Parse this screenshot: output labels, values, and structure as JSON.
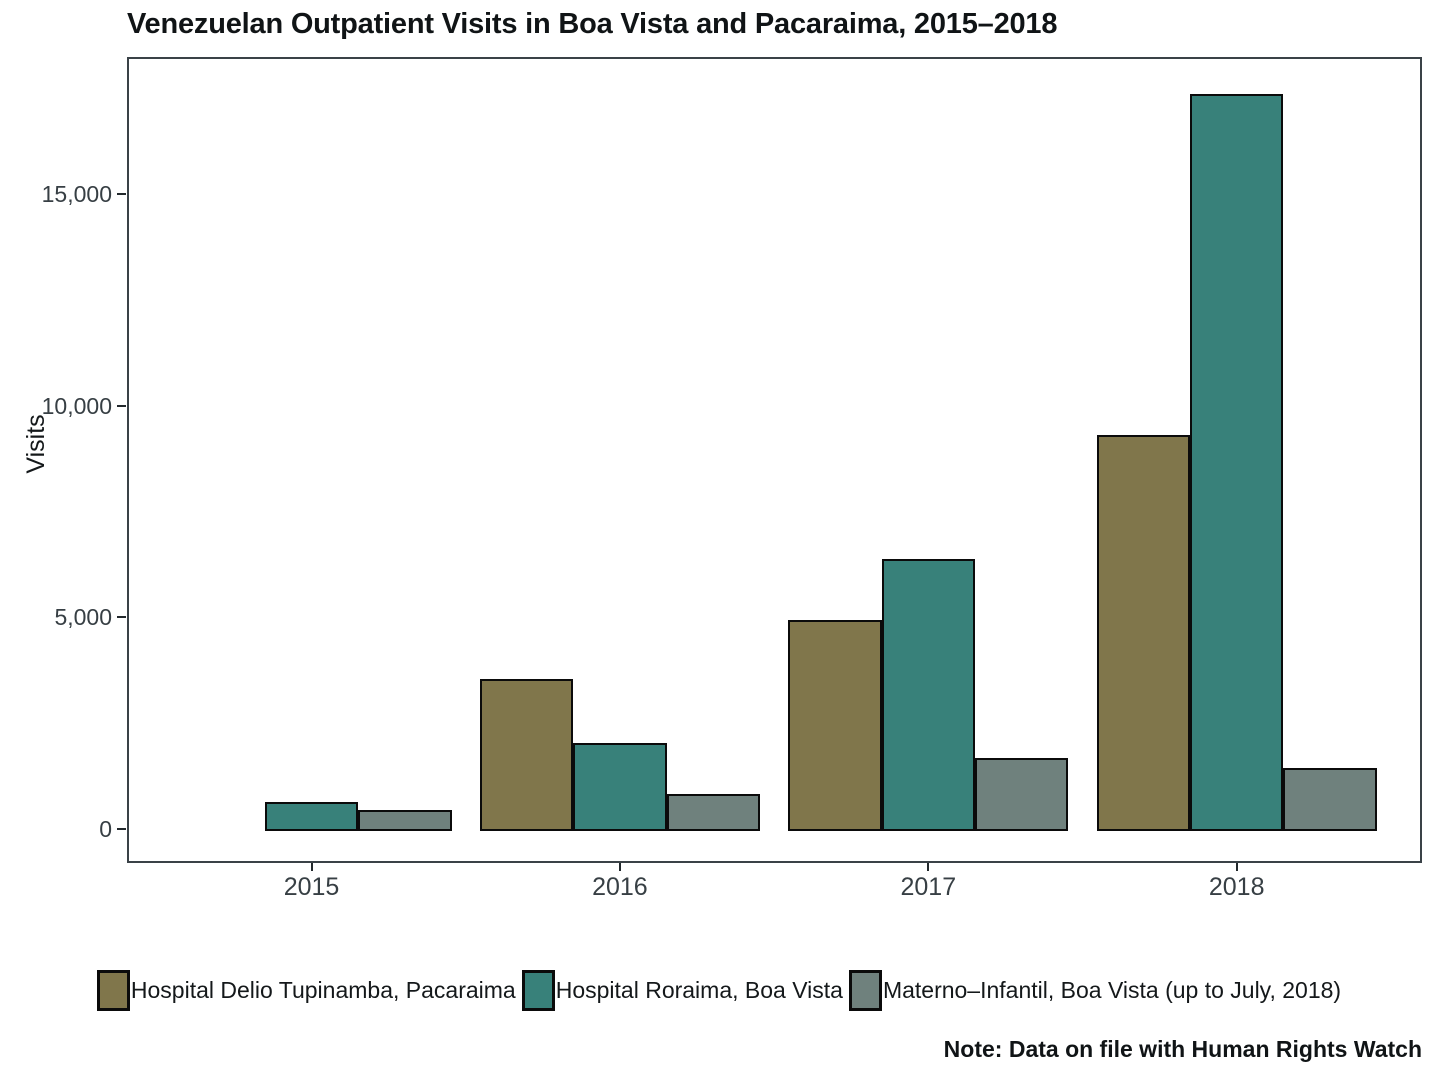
{
  "page": {
    "title": "Venezuelan Outpatient Visits in Boa Vista and Pacaraima, 2015–2018",
    "note": "Note: Data on file with Human Rights Watch"
  },
  "chart_data": {
    "type": "bar",
    "title": "Venezuelan Outpatient Visits in Boa Vista and Pacaraima, 2015–2018",
    "xlabel": "",
    "ylabel": "Visits",
    "categories": [
      "2015",
      "2016",
      "2017",
      "2018"
    ],
    "series": [
      {
        "name": "Hospital Delio Tupinamba, Pacaraima",
        "color": "#80764B",
        "values": [
          null,
          3540,
          4940,
          9320
        ]
      },
      {
        "name": "Hospital Roraima, Boa Vista",
        "color": "#38817A",
        "values": [
          630,
          2030,
          6390,
          17360
        ]
      },
      {
        "name": "Materno–Infantil, Boa Vista (up to July, 2018)",
        "color": "#6F817D",
        "values": [
          440,
          820,
          1690,
          1450
        ]
      }
    ],
    "y_ticks": [
      {
        "value": 0,
        "label": "0"
      },
      {
        "value": 5000,
        "label": "5,000"
      },
      {
        "value": 10000,
        "label": "10,000"
      },
      {
        "value": 15000,
        "label": "15,000"
      }
    ],
    "ylim": [
      0,
      18200
    ],
    "gridline_step": 2500,
    "grid": true,
    "legend_position": "bottom"
  },
  "colors": {
    "background": "#ffffff",
    "panel_border": "#3a4247",
    "gridline": "#e9eef0",
    "bar_border": "#0b0b0b",
    "axis_text": "#373f44",
    "title_text": "#101416"
  }
}
